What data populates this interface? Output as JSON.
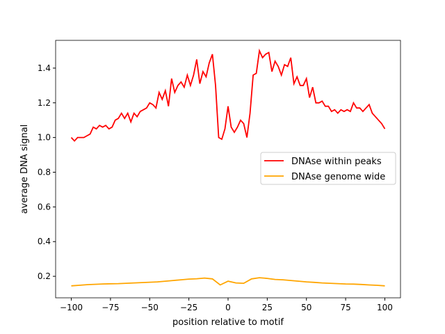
{
  "chart_data": {
    "type": "line",
    "title": "",
    "xlabel": "position relative to motif",
    "ylabel": "average DNA signal",
    "xlim": [
      -110,
      110
    ],
    "ylim": [
      0.076,
      1.56
    ],
    "xticks": [
      -100,
      -75,
      -50,
      -25,
      0,
      25,
      50,
      75,
      100
    ],
    "yticks": [
      0.2,
      0.4,
      0.6,
      0.8,
      1.0,
      1.2,
      1.4
    ],
    "xtick_labels": [
      "−100",
      "−75",
      "−50",
      "−25",
      "0",
      "25",
      "50",
      "75",
      "100"
    ],
    "ytick_labels": [
      "0.2",
      "0.4",
      "0.6",
      "0.8",
      "1.0",
      "1.2",
      "1.4"
    ],
    "legend_position": "center-right",
    "grid": false,
    "series": [
      {
        "name": "DNAse within peaks",
        "color": "#ff0000",
        "x_start": -100,
        "x_step": 2,
        "values": [
          1.0,
          0.98,
          1.0,
          1.0,
          1.0,
          1.01,
          1.02,
          1.06,
          1.05,
          1.07,
          1.06,
          1.07,
          1.05,
          1.06,
          1.1,
          1.11,
          1.14,
          1.11,
          1.14,
          1.09,
          1.14,
          1.12,
          1.15,
          1.16,
          1.17,
          1.2,
          1.19,
          1.17,
          1.26,
          1.22,
          1.27,
          1.18,
          1.34,
          1.26,
          1.3,
          1.32,
          1.29,
          1.36,
          1.3,
          1.36,
          1.45,
          1.31,
          1.38,
          1.35,
          1.43,
          1.48,
          1.3,
          1.0,
          0.99,
          1.05,
          1.18,
          1.06,
          1.03,
          1.06,
          1.1,
          1.08,
          1.0,
          1.14,
          1.36,
          1.37,
          1.5,
          1.46,
          1.48,
          1.49,
          1.38,
          1.44,
          1.41,
          1.36,
          1.42,
          1.41,
          1.46,
          1.31,
          1.35,
          1.3,
          1.3,
          1.34,
          1.23,
          1.29,
          1.2,
          1.2,
          1.21,
          1.18,
          1.18,
          1.15,
          1.16,
          1.14,
          1.16,
          1.15,
          1.16,
          1.15,
          1.2,
          1.17,
          1.17,
          1.15,
          1.17,
          1.19,
          1.14,
          1.12,
          1.1,
          1.08,
          1.05
        ]
      },
      {
        "name": "DNAse genome wide",
        "color": "#ffa500",
        "x_start": -100,
        "x_step": 5,
        "values": [
          0.145,
          0.148,
          0.152,
          0.154,
          0.156,
          0.157,
          0.158,
          0.16,
          0.162,
          0.164,
          0.166,
          0.168,
          0.172,
          0.176,
          0.18,
          0.184,
          0.186,
          0.19,
          0.185,
          0.15,
          0.172,
          0.162,
          0.16,
          0.185,
          0.192,
          0.188,
          0.182,
          0.18,
          0.176,
          0.172,
          0.168,
          0.165,
          0.162,
          0.16,
          0.158,
          0.156,
          0.155,
          0.153,
          0.15,
          0.148,
          0.145
        ]
      }
    ]
  }
}
